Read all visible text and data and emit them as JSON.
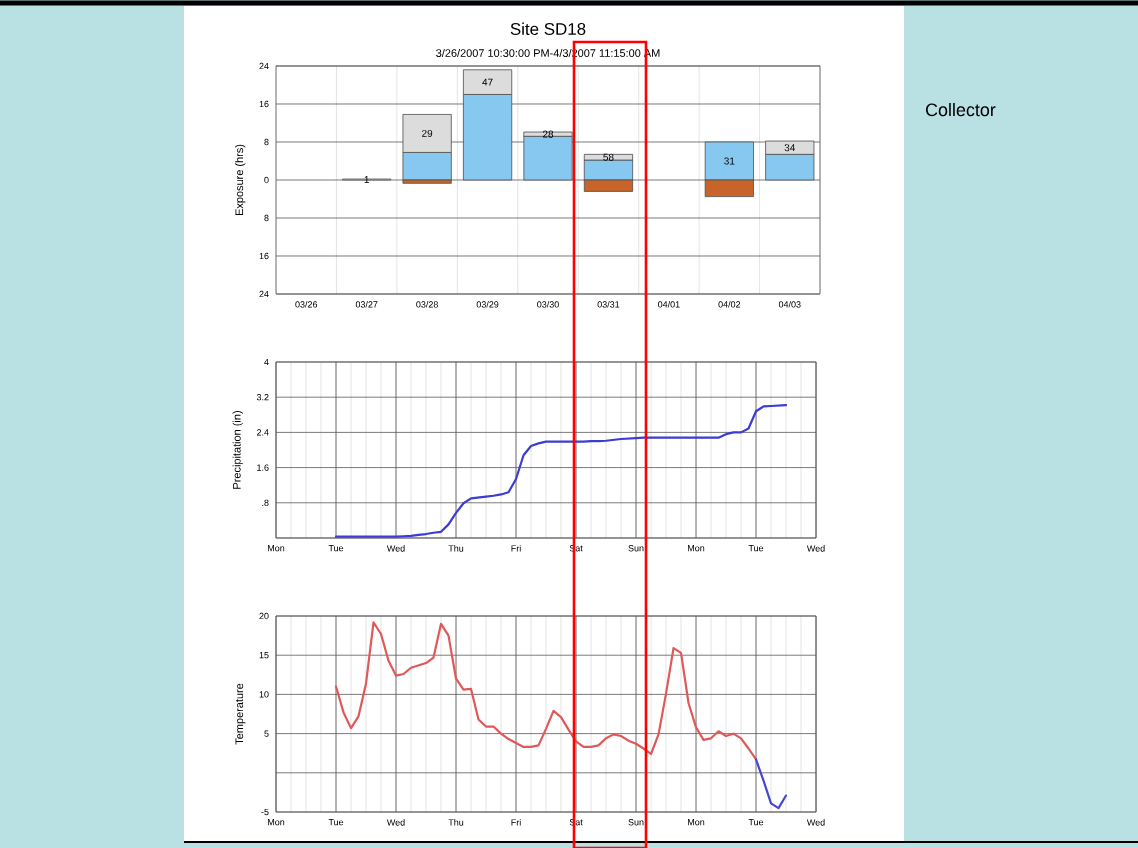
{
  "chart_data": [
    {
      "type": "bar",
      "title": "Site SD18",
      "subtitle": "3/26/2007 10:30:00 PM-4/3/2007 11:15:00 AM",
      "ylabel": "Exposure (hrs)",
      "categories": [
        "03/26",
        "03/27",
        "03/28",
        "03/29",
        "03/30",
        "03/31",
        "04/01",
        "04/02",
        "04/03"
      ],
      "stacked": true,
      "series": [
        {
          "color": "#87c8f0",
          "values": [
            null,
            null,
            5.8,
            18.0,
            9.2,
            4.2,
            null,
            8.0,
            5.4
          ]
        },
        {
          "color": "#dcdcdc",
          "values": [
            null,
            0.2,
            8.0,
            5.2,
            0.9,
            1.2,
            null,
            null,
            2.8
          ]
        },
        {
          "color": "#c8642a",
          "values": [
            null,
            null,
            -0.7,
            null,
            null,
            -2.4,
            null,
            -3.5,
            null
          ]
        }
      ],
      "annotations": [
        "1",
        "29",
        "47",
        "28",
        "58",
        "31",
        "34"
      ],
      "ylim": [
        -24,
        24
      ],
      "yticks": [
        {
          "value": -24,
          "label": "24"
        },
        {
          "value": -16,
          "label": "16"
        },
        {
          "value": -8,
          "label": "8"
        },
        0,
        8,
        16,
        24
      ],
      "grid": true
    },
    {
      "type": "line",
      "ylabel": "Precipitation (in)",
      "categories": [
        "Mon",
        null,
        null,
        null,
        null,
        null,
        null,
        null,
        "Tue",
        null,
        null,
        null,
        null,
        null,
        null,
        null,
        "Wed",
        null,
        null,
        null,
        null,
        null,
        null,
        null,
        "Thu",
        null,
        null,
        null,
        null,
        null,
        null,
        null,
        "Fri",
        null,
        null,
        null,
        null,
        null,
        null,
        null,
        "Sat",
        null,
        null,
        null,
        null,
        null,
        null,
        null,
        "Sun",
        null,
        null,
        null,
        null,
        null,
        null,
        null,
        "Mon",
        null,
        null,
        null,
        null,
        null,
        null,
        null,
        "Tue",
        null,
        null,
        null,
        null,
        null,
        null,
        null,
        "Wed"
      ],
      "ylim": [
        0,
        4
      ],
      "yticks": [
        {
          "value": 0,
          "label": null
        },
        {
          "value": 0.8,
          "label": ".8"
        },
        1.6,
        2.4,
        3.2,
        4
      ],
      "grid": true,
      "series": [
        {
          "color": "#3c3cd2",
          "values": [
            null,
            null,
            null,
            null,
            null,
            null,
            null,
            null,
            0.03,
            0.03,
            0.03,
            0.03,
            0.03,
            0.03,
            0.03,
            0.03,
            0.03,
            0.04,
            0.05,
            0.07,
            0.09,
            0.12,
            0.14,
            0.31,
            0.57,
            0.79,
            0.9,
            0.92,
            0.94,
            0.96,
            0.99,
            1.04,
            1.34,
            1.88,
            2.09,
            2.15,
            2.19,
            2.19,
            2.19,
            2.19,
            2.19,
            2.19,
            2.2,
            2.2,
            2.21,
            2.23,
            2.25,
            2.26,
            2.27,
            2.28,
            2.28,
            2.28,
            2.28,
            2.28,
            2.28,
            2.28,
            2.28,
            2.28,
            2.28,
            2.28,
            2.36,
            2.4,
            2.4,
            2.49,
            2.88,
            2.99,
            3.0,
            3.01,
            3.02,
            null,
            null,
            null,
            null
          ]
        }
      ]
    },
    {
      "type": "line",
      "ylabel": "Temperature",
      "categories": [
        "Mon",
        null,
        null,
        null,
        null,
        null,
        null,
        null,
        "Tue",
        null,
        null,
        null,
        null,
        null,
        null,
        null,
        "Wed",
        null,
        null,
        null,
        null,
        null,
        null,
        null,
        "Thu",
        null,
        null,
        null,
        null,
        null,
        null,
        null,
        "Fri",
        null,
        null,
        null,
        null,
        null,
        null,
        null,
        "Sat",
        null,
        null,
        null,
        null,
        null,
        null,
        null,
        "Sun",
        null,
        null,
        null,
        null,
        null,
        null,
        null,
        "Mon",
        null,
        null,
        null,
        null,
        null,
        null,
        null,
        "Tue",
        null,
        null,
        null,
        null,
        null,
        null,
        null,
        "Wed"
      ],
      "ylim": [
        -5,
        20
      ],
      "yticks": [
        -5,
        {
          "value": 0,
          "label": null
        },
        5,
        10,
        15,
        20
      ],
      "grid": true,
      "series": [
        {
          "color": "#e05858",
          "values": [
            null,
            null,
            null,
            null,
            null,
            null,
            null,
            null,
            11.0,
            7.7,
            5.7,
            7.2,
            11.4,
            19.2,
            17.7,
            14.3,
            12.4,
            12.6,
            13.4,
            13.7,
            14.0,
            14.7,
            19.0,
            17.5,
            12.0,
            10.6,
            10.7,
            6.8,
            5.9,
            5.9,
            5.0,
            4.3,
            3.8,
            3.3,
            3.3,
            3.5,
            5.6,
            7.9,
            7.1,
            5.5,
            4.0,
            3.3,
            3.3,
            3.5,
            4.4,
            4.9,
            4.7,
            4.1,
            3.7,
            3.1,
            2.4,
            4.9,
            10.1,
            15.9,
            15.3,
            8.9,
            5.8,
            4.2,
            4.4,
            5.3,
            4.7,
            5.0,
            4.4,
            3.1,
            1.7,
            null,
            null,
            null,
            null,
            null,
            null,
            null,
            null
          ]
        },
        {
          "color": "#4646d2",
          "values": [
            null,
            null,
            null,
            null,
            null,
            null,
            null,
            null,
            null,
            null,
            null,
            null,
            null,
            null,
            null,
            null,
            null,
            null,
            null,
            null,
            null,
            null,
            null,
            null,
            null,
            null,
            null,
            null,
            null,
            null,
            null,
            null,
            null,
            null,
            null,
            null,
            null,
            null,
            null,
            null,
            null,
            null,
            null,
            null,
            null,
            null,
            null,
            null,
            null,
            null,
            null,
            null,
            null,
            null,
            null,
            null,
            null,
            null,
            null,
            null,
            null,
            null,
            null,
            null,
            1.7,
            -1.0,
            -3.9,
            -4.5,
            -2.9,
            null,
            null,
            null,
            null
          ]
        }
      ]
    },
    {
      "type": "other",
      "title": "Collector"
    }
  ]
}
